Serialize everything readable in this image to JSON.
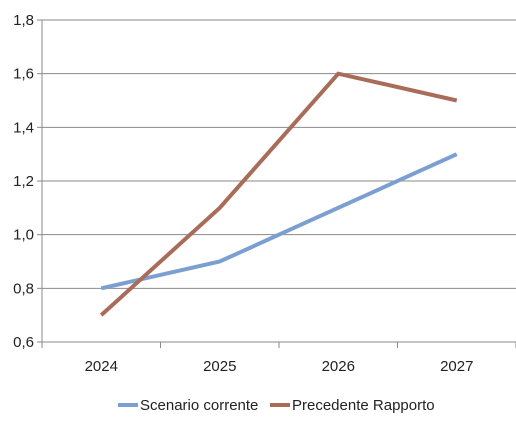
{
  "chart_data": {
    "type": "line",
    "title": "",
    "xlabel": "",
    "ylabel": "",
    "categories": [
      "2024",
      "2025",
      "2026",
      "2027"
    ],
    "ylim": [
      0.6,
      1.8
    ],
    "yticks": [
      0.6,
      0.8,
      1.0,
      1.2,
      1.4,
      1.6,
      1.8
    ],
    "ytick_labels": [
      "0,6",
      "0,8",
      "1,0",
      "1,2",
      "1,4",
      "1,6",
      "1,8"
    ],
    "grid": "horizontal",
    "legend_position": "bottom",
    "series": [
      {
        "name": "Scenario corrente",
        "values": [
          0.8,
          0.9,
          1.1,
          1.3
        ],
        "color": "#7b9fd1"
      },
      {
        "name": "Precedente Rapporto",
        "values": [
          0.7,
          1.1,
          1.6,
          1.5
        ],
        "color": "#a86c58"
      }
    ]
  }
}
